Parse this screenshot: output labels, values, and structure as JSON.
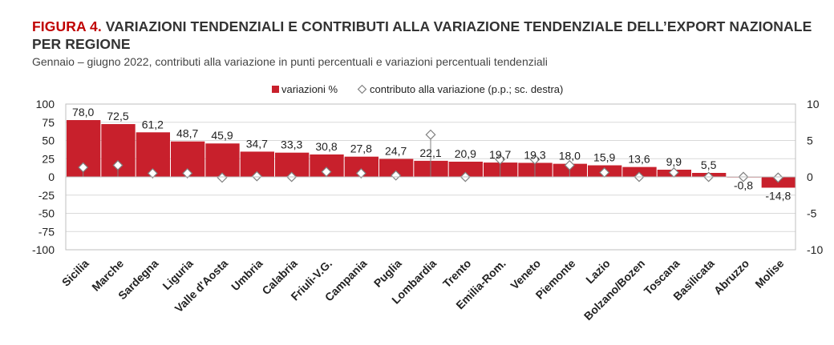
{
  "header": {
    "figure_label": "FIGURA 4.",
    "title": "VARIAZIONI TENDENZIALI E CONTRIBUTI ALLA VARIAZIONE TENDENZIALE DELL’EXPORT NAZIONALE PER REGIONE",
    "subtitle": "Gennaio – giugno 2022, contributi alla variazione in punti percentuali e variazioni percentuali tendenziali"
  },
  "colors": {
    "bar": "#c8202c",
    "marker_stroke": "#808080",
    "grid": "#d9d9d9"
  },
  "chart_data": {
    "type": "bar",
    "legend_position": "top-center",
    "categories": [
      "Sicilia",
      "Marche",
      "Sardegna",
      "Liguria",
      "Valle d'Aosta",
      "Umbria",
      "Calabria",
      "Friuli-V.G.",
      "Campania",
      "Puglia",
      "Lombardia",
      "Trento",
      "Emilia-Rom.",
      "Veneto",
      "Piemonte",
      "Lazio",
      "Bolzano/Bozen",
      "Toscana",
      "Basilicata",
      "Abruzzo",
      "Molise"
    ],
    "series": [
      {
        "name": "variazioni %",
        "kind": "bar",
        "axis": "left",
        "values": [
          78.0,
          72.5,
          61.2,
          48.7,
          45.9,
          34.7,
          33.3,
          30.8,
          27.8,
          24.7,
          22.1,
          20.9,
          19.7,
          19.3,
          18.0,
          15.9,
          13.6,
          9.9,
          5.5,
          -0.8,
          -14.8
        ],
        "labels": [
          "78,0",
          "72,5",
          "61,2",
          "48,7",
          "45,9",
          "34,7",
          "33,3",
          "30,8",
          "27,8",
          "24,7",
          "22,1",
          "20,9",
          "19,7",
          "19,3",
          "18,0",
          "15,9",
          "13,6",
          "9,9",
          "5,5",
          "-0,8",
          "-14,8"
        ]
      },
      {
        "name": "contributo alla variazione (p.p.; sc. destra)",
        "kind": "marker",
        "axis": "right",
        "values": [
          1.3,
          1.6,
          0.5,
          0.5,
          -0.1,
          0.1,
          0.0,
          0.7,
          0.5,
          0.2,
          5.8,
          0.0,
          2.4,
          2.4,
          1.6,
          0.6,
          0.0,
          0.6,
          0.0,
          0.0,
          -0.1
        ]
      }
    ],
    "y_left": {
      "min": -100,
      "max": 100,
      "ticks": [
        "100",
        "75",
        "50",
        "25",
        "0",
        "-25",
        "-50",
        "-75",
        "-100"
      ]
    },
    "y_right": {
      "min": -10,
      "max": 10,
      "ticks": [
        "10",
        "5",
        "0",
        "-5",
        "-10"
      ]
    },
    "grid": true
  }
}
